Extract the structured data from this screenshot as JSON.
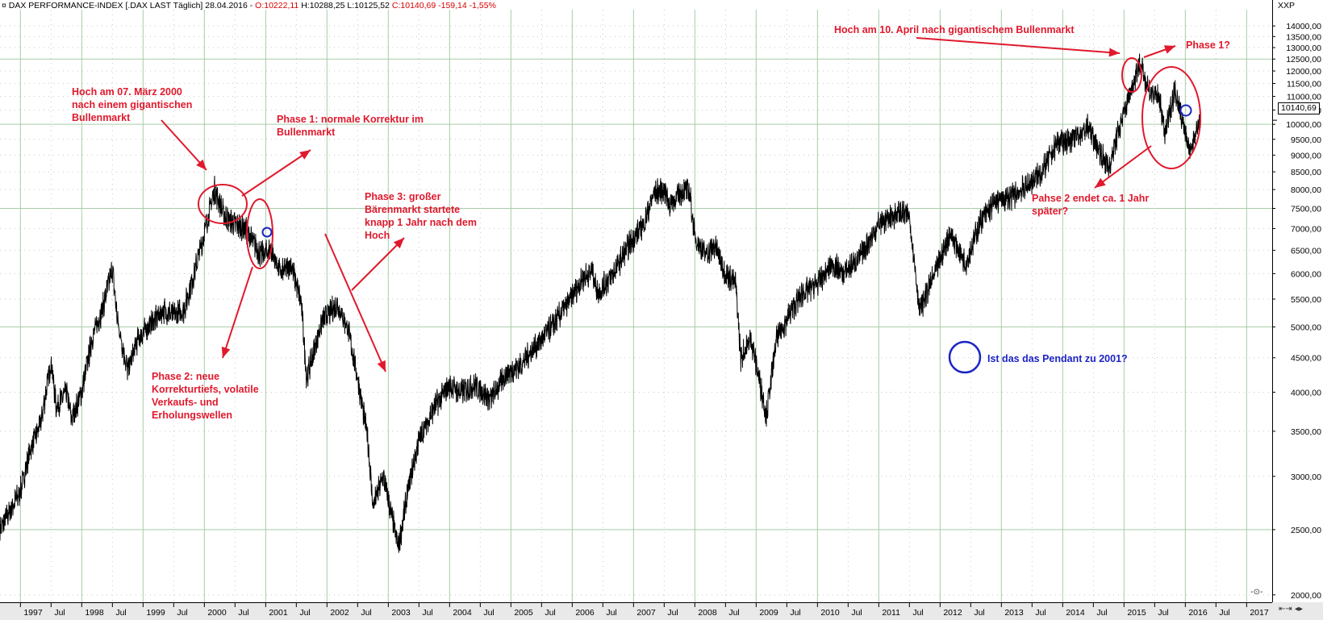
{
  "header": {
    "pre": "DAX PERFORMANCE-INDEX [.DAX LAST Täglich] 28.04.2016 - ",
    "open": "O:10222,11",
    "high": "H:10288,25",
    "low": "L:10125,52",
    "close": "C:10140,69 -159,14 -1,55%"
  },
  "symbol_code": "XXP",
  "last_value_label": "10140,69",
  "controls": {
    "right_bottom": "-⊙-",
    "scroll_buttons": "⇤⇥ ◂▸"
  },
  "colors": {
    "price_line": "#000000",
    "annotation_red": "#e0192d",
    "annotation_blue": "#1c24c4",
    "grid_line": "#a9cca9",
    "header_red": "#d40000"
  },
  "annotations": {
    "peak2000": [
      "Hoch am 07. März 2000",
      "nach einem gigantischen",
      "Bullenmarkt"
    ],
    "phase1_2000": [
      "Phase 1: normale Korrektur im",
      "Bullenmarkt"
    ],
    "phase3_2000": [
      "Phase 3: großer",
      "Bärenmarkt startete",
      "knapp 1 Jahr nach dem",
      "Hoch"
    ],
    "phase2_2000": [
      "Phase 2: neue",
      "Korrekturtiefs, volatile",
      "Verkaufs- und",
      "Erholungswellen"
    ],
    "peak2015": [
      "Hoch am 10. April nach gigantischem Bullenmarkt"
    ],
    "phase1_2015": [
      "Phase 1?"
    ],
    "phase2_2015": [
      "Pahse 2 endet ca. 1 Jahr",
      "später?"
    ],
    "question": [
      "Ist das das Pendant zu 2001?"
    ]
  },
  "chart_data": {
    "type": "line",
    "title": "DAX PERFORMANCE-INDEX [.DAX LAST Täglich] 28.04.2016",
    "y_scale": "log",
    "ylim": [
      1950,
      14800
    ],
    "xlim": [
      "1996-09",
      "2017-06"
    ],
    "grid": true,
    "y_ticks": [
      "2000,00",
      "2500,00",
      "3000,00",
      "3500,00",
      "4000,00",
      "4500,00",
      "5000,00",
      "5500,00",
      "6000,00",
      "6500,00",
      "7000,00",
      "7500,00",
      "8000,00",
      "8500,00",
      "9000,00",
      "9500,00",
      "10000,00",
      "10500,00",
      "11000,00",
      "11500,00",
      "12000,00",
      "12500,00",
      "13000,00",
      "13500,00",
      "14000,00"
    ],
    "x_ticks": [
      "1997",
      "Jul",
      "1998",
      "Jul",
      "1999",
      "Jul",
      "2000",
      "Jul",
      "2001",
      "Jul",
      "2002",
      "Jul",
      "2003",
      "Jul",
      "2004",
      "Jul",
      "2005",
      "Jul",
      "2006",
      "Jul",
      "2007",
      "Jul",
      "2008",
      "Jul",
      "2009",
      "Jul",
      "2010",
      "Jul",
      "2011",
      "Jul",
      "2012",
      "Jul",
      "2013",
      "Jul",
      "2014",
      "Jul",
      "2015",
      "Jul",
      "2016",
      "Jul",
      "2017"
    ],
    "series": [
      {
        "x": [
          "1996-09",
          "1997-01",
          "1997-03",
          "1997-05",
          "1997-07",
          "1997-08",
          "1997-10",
          "1997-11",
          "1998-01",
          "1998-03",
          "1998-05",
          "1998-07",
          "1998-08",
          "1998-10",
          "1998-12",
          "1999-02",
          "1999-05",
          "1999-07",
          "1999-09",
          "1999-11",
          "2000-01",
          "2000-03",
          "2000-05",
          "2000-07",
          "2000-09",
          "2000-12",
          "2001-02",
          "2001-04",
          "2001-06",
          "2001-08",
          "2001-09",
          "2001-12",
          "2002-03",
          "2002-05",
          "2002-07",
          "2002-09",
          "2002-10",
          "2002-12",
          "2003-03",
          "2003-05",
          "2003-07",
          "2003-10",
          "2004-01",
          "2004-03",
          "2004-06",
          "2004-09",
          "2004-12",
          "2005-03",
          "2005-06",
          "2005-09",
          "2005-12",
          "2006-03",
          "2006-05",
          "2006-06",
          "2006-09",
          "2006-12",
          "2007-03",
          "2007-05",
          "2007-07",
          "2007-08",
          "2007-11",
          "2007-12",
          "2008-01",
          "2008-03",
          "2008-05",
          "2008-07",
          "2008-09",
          "2008-10",
          "2008-12",
          "2009-03",
          "2009-05",
          "2009-08",
          "2009-10",
          "2010-01",
          "2010-04",
          "2010-06",
          "2010-09",
          "2011-01",
          "2011-05",
          "2011-07",
          "2011-09",
          "2011-12",
          "2012-03",
          "2012-06",
          "2012-09",
          "2012-12",
          "2013-03",
          "2013-06",
          "2013-09",
          "2013-12",
          "2014-03",
          "2014-06",
          "2014-08",
          "2014-10",
          "2014-12",
          "2015-02",
          "2015-04",
          "2015-06",
          "2015-08",
          "2015-09",
          "2015-11",
          "2016-02",
          "2016-03",
          "2016-04"
        ],
        "y": [
          2500,
          2850,
          3300,
          3600,
          4450,
          3800,
          4000,
          3650,
          4000,
          4800,
          5300,
          6100,
          5100,
          4300,
          4800,
          5000,
          5300,
          5200,
          5300,
          6000,
          6900,
          8000,
          7300,
          7100,
          7000,
          6400,
          6500,
          6000,
          6200,
          5400,
          4200,
          5100,
          5400,
          5000,
          4200,
          3400,
          2700,
          3000,
          2350,
          2900,
          3400,
          3800,
          4100,
          4000,
          4100,
          3900,
          4250,
          4400,
          4700,
          5000,
          5400,
          5900,
          6050,
          5600,
          6000,
          6600,
          7100,
          7900,
          8000,
          7600,
          8000,
          7900,
          6800,
          6400,
          6600,
          6000,
          5800,
          4500,
          4800,
          3700,
          4800,
          5300,
          5600,
          5800,
          6200,
          6000,
          6300,
          7100,
          7400,
          7300,
          5300,
          6000,
          6900,
          6200,
          7200,
          7700,
          7800,
          8100,
          8500,
          9400,
          9500,
          9900,
          9200,
          8600,
          9800,
          11000,
          12350,
          11200,
          10900,
          9600,
          11300,
          9000,
          9800,
          10140
        ]
      }
    ]
  }
}
